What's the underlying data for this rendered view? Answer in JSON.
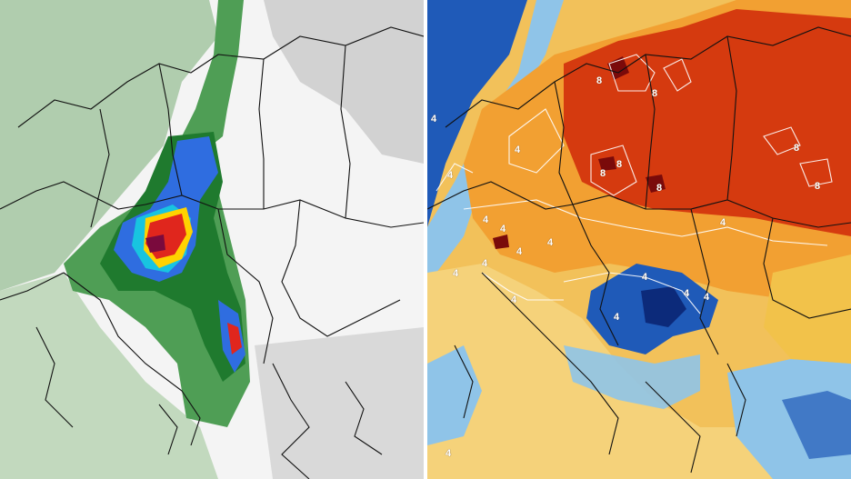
{
  "maps": [
    {
      "kind": "precipitation-accumulation",
      "colors": {
        "low": "#8fbf8f",
        "medium": "#2e8b3a",
        "high": "#1e5fd8",
        "very_high": "#ffd200",
        "extreme": "#e0261d",
        "peak": "#7a0a3d",
        "background": "#f4f4f4"
      }
    },
    {
      "kind": "temperature-anomaly",
      "colors": {
        "warm_extreme": "#7a0a0a",
        "warm_strong": "#d53a0f",
        "warm": "#f2a032",
        "mild": "#f5d27a",
        "neutral": "#f7f1e6",
        "cool": "#8fc4e8",
        "cold": "#1f5ab8",
        "very_cold": "#0c2a7a"
      }
    }
  ],
  "contour_labels": [
    "8",
    "8",
    "8",
    "8",
    "8",
    "8",
    "8",
    "4",
    "4",
    "4",
    "4",
    "4",
    "4",
    "4",
    "4",
    "4",
    "4",
    "4",
    "4",
    "4",
    "4",
    "4",
    "4"
  ]
}
